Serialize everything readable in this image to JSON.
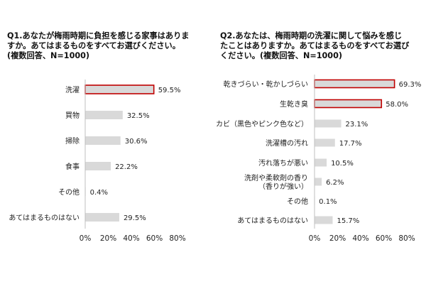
{
  "panels": [
    {
      "title_lines": [
        "Q1.あなたが梅雨時期に負担を感じる家事はありま",
        "すか。あてはまるものをすべてお選びください。",
        "(複数回答、N=1000)"
      ]
    },
    {
      "title_lines": [
        "Q2.あなたは、梅雨時期の洗濯に関して悩みを感じ",
        "たことはありますか。あてはまるものをすべてお選び",
        "ください。(複数回答、N=1000)"
      ]
    }
  ],
  "colors": {
    "bar": "#d9d9d9",
    "highlight_outline": "#c00000",
    "axis": "#bfbfbf",
    "text": "#222222"
  },
  "chart_data": [
    {
      "type": "bar",
      "orientation": "horizontal",
      "categories": [
        "洗濯",
        "買物",
        "掃除",
        "食事",
        "その他",
        "あてはまるものはない"
      ],
      "values": [
        59.5,
        32.5,
        30.6,
        22.2,
        0.4,
        29.5
      ],
      "value_labels": [
        "59.5%",
        "32.5%",
        "30.6%",
        "22.2%",
        "0.4%",
        "29.5%"
      ],
      "highlighted": [
        0
      ],
      "xlim": [
        0,
        80
      ],
      "xticks": [
        0,
        20,
        40,
        60,
        80
      ],
      "xtick_labels": [
        "0%",
        "20%",
        "40%",
        "60%",
        "80%"
      ],
      "grid": false
    },
    {
      "type": "bar",
      "orientation": "horizontal",
      "categories": [
        [
          "乾きづらい・乾かしづらい"
        ],
        [
          "生乾き臭"
        ],
        [
          "カビ（黒色やピンク色など）"
        ],
        [
          "洗濯槽の汚れ"
        ],
        [
          "汚れ落ちが悪い"
        ],
        [
          "洗剤や柔軟剤の香り",
          "（香りが強い）"
        ],
        [
          "その他"
        ],
        [
          "あてはまるものはない"
        ]
      ],
      "values": [
        69.3,
        58.0,
        23.1,
        17.7,
        10.5,
        6.2,
        0.1,
        15.7
      ],
      "value_labels": [
        "69.3%",
        "58.0%",
        "23.1%",
        "17.7%",
        "10.5%",
        "6.2%",
        "0.1%",
        "15.7%"
      ],
      "highlighted": [
        0,
        1
      ],
      "xlim": [
        0,
        80
      ],
      "xticks": [
        0,
        20,
        40,
        60,
        80
      ],
      "xtick_labels": [
        "0%",
        "20%",
        "40%",
        "60%",
        "80%"
      ],
      "grid": false
    }
  ]
}
